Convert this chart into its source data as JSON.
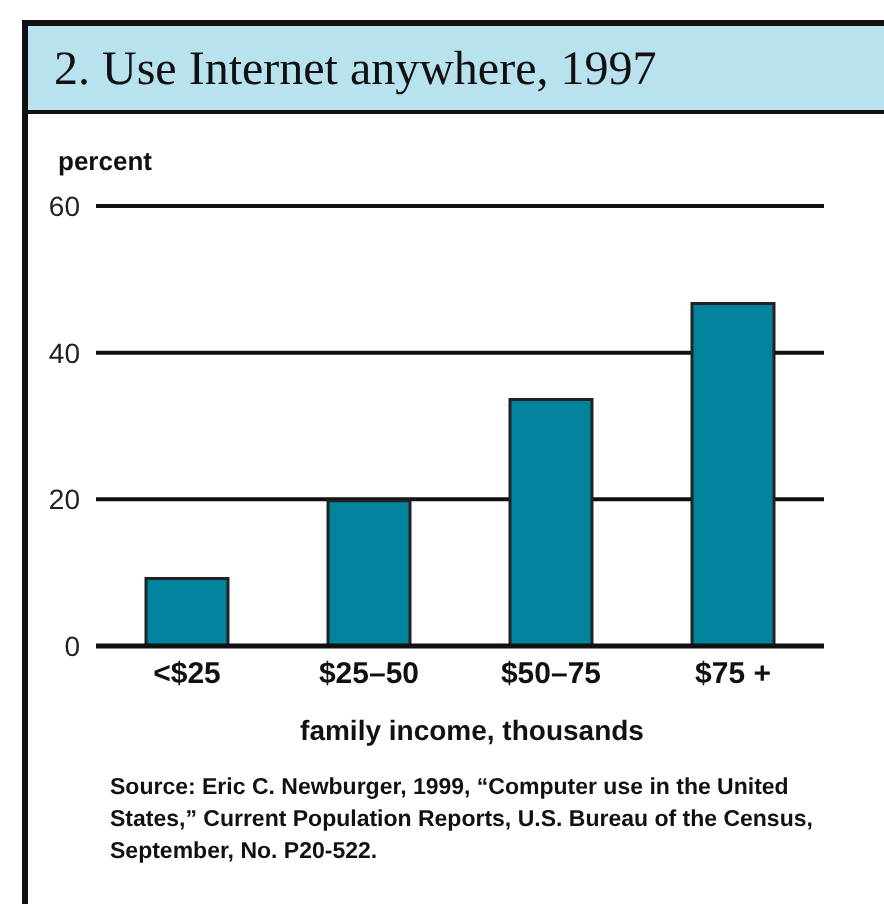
{
  "chart_data": {
    "type": "bar",
    "title": "2. Use Internet anywhere, 1997",
    "ylabel": "percent",
    "xlabel": "family income, thousands",
    "categories": [
      "<$25",
      "$25–50",
      "$50–75",
      "$75 +"
    ],
    "values": [
      9.2,
      19.8,
      33.6,
      46.7
    ],
    "color": "#00849e",
    "ylim": [
      0,
      60
    ],
    "yticks": [
      0,
      20,
      40,
      60
    ],
    "grid": "y",
    "annotations": [
      "Source: Eric C. Newburger, 1999, “Computer use in the United States,” Current Population Reports, U.S. Bureau of the Census, September, No. P20-522."
    ]
  }
}
